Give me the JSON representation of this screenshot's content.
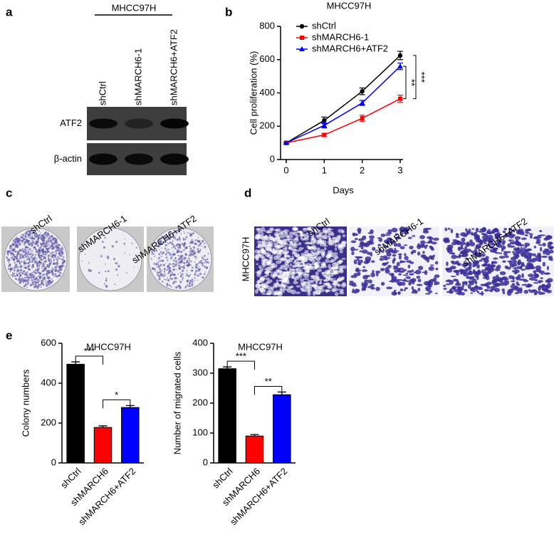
{
  "panel_labels": [
    "a",
    "b",
    "c",
    "d",
    "e"
  ],
  "blot": {
    "cell_line": "MHCC97H",
    "lanes": [
      "shCtrl",
      "shMARCH6-1",
      "shMARCH6+ATF2"
    ],
    "rows": [
      "ATF2",
      "β-actin"
    ]
  },
  "colony_images": {
    "cell_line": "MHCC97H",
    "columns": [
      "shCtrl",
      "shMARCH6-1",
      "shMARCH6+ATF2"
    ]
  },
  "migration_images": {
    "cell_line": "MHCC97H",
    "columns": [
      "shCtrl",
      "shMARCH6-1",
      "shMARCH6+ATF2"
    ]
  },
  "chart_data": [
    {
      "type": "line",
      "title": "MHCC97H",
      "x_label": "Days",
      "y_label": "Cell proliferation (%)",
      "x": [
        0,
        1,
        2,
        3
      ],
      "xlim": [
        0,
        3
      ],
      "xticks": [
        0,
        1,
        2,
        3
      ],
      "ylim": [
        0,
        800
      ],
      "yticks": [
        0,
        200,
        400,
        600,
        800
      ],
      "series": [
        {
          "name": "shCtrl",
          "color": "#000000",
          "marker": "circle",
          "values": [
            100,
            235,
            410,
            625
          ],
          "errors": [
            5,
            20,
            20,
            25
          ]
        },
        {
          "name": "shMARCH6-1",
          "color": "#ff0000",
          "marker": "square",
          "values": [
            100,
            148,
            248,
            365
          ],
          "errors": [
            5,
            10,
            18,
            22
          ]
        },
        {
          "name": "shMARCH6+ATF2",
          "color": "#0000ff",
          "marker": "triangle",
          "values": [
            100,
            205,
            340,
            560
          ],
          "errors": [
            5,
            15,
            15,
            20
          ]
        }
      ],
      "annotations": [
        "**",
        "***"
      ]
    },
    {
      "type": "bar",
      "title": "MHCC97H",
      "y_label": "Colony numbers",
      "categories": [
        "shCtrl",
        "shMARCH6",
        "shMARCH6+ATF2"
      ],
      "colors": [
        "#000000",
        "#ff0000",
        "#0000ff"
      ],
      "values": [
        495,
        178,
        278
      ],
      "errors": [
        12,
        8,
        10
      ],
      "ylim": [
        0,
        600
      ],
      "yticks": [
        0,
        200,
        400,
        600
      ],
      "annotations": [
        "***",
        "*"
      ]
    },
    {
      "type": "bar",
      "title": "MHCC97H",
      "y_label": "Number of migrated cells",
      "categories": [
        "shCtrl",
        "shMARCH6",
        "shMARCH6+ATF2"
      ],
      "colors": [
        "#000000",
        "#ff0000",
        "#0000ff"
      ],
      "values": [
        315,
        90,
        228
      ],
      "errors": [
        6,
        5,
        9
      ],
      "ylim": [
        0,
        400
      ],
      "yticks": [
        0,
        100,
        200,
        300,
        400
      ],
      "annotations": [
        "***",
        "**"
      ]
    }
  ]
}
